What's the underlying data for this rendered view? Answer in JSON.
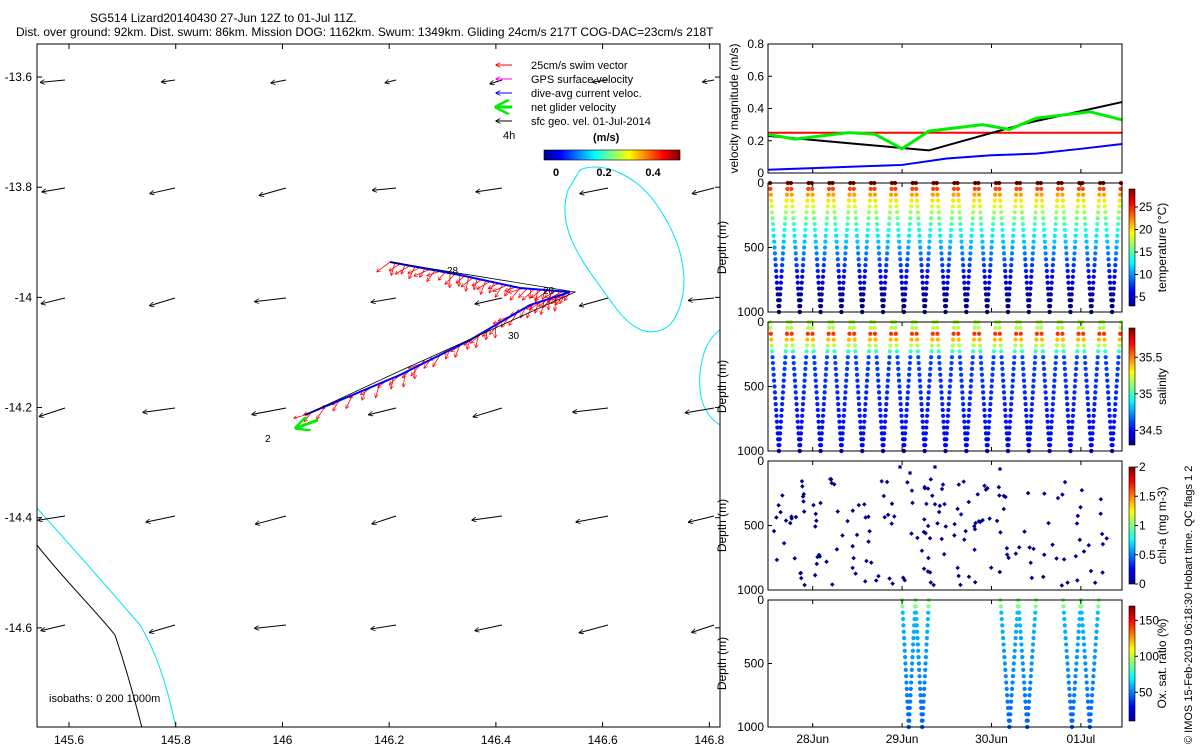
{
  "title_line1": "SG514 Lizard20140430 27-Jun 12Z to 01-Jul 11Z.",
  "title_line2": "Dist. over ground: 92km. Dist. swum: 86km. Mission DOG: 1162km. Swum: 1349km. Gliding 24cm/s 217T COG-DAC=23cm/s 218T",
  "credit": "© IMOS 15-Feb-2019 06:18:30 Hobart time. QC flags 1  2",
  "colors": {
    "swim": "#ff0000",
    "gps": "#ff00ff",
    "dac": "#0000ff",
    "net": "#00ee00",
    "sfc": "#000000",
    "isobath_200": "#00e5ee",
    "isobath_0": "#000000"
  },
  "map": {
    "legend": [
      {
        "label": "25cm/s swim vector",
        "color": "#ff0000"
      },
      {
        "label": "GPS surface velocity",
        "color": "#ff00ff"
      },
      {
        "label": "dive-avg current veloc.",
        "color": "#0000ff"
      },
      {
        "label": "net glider velocity",
        "color": "#00ee00"
      },
      {
        "label": "sfc geo. vel. 01-Jul-2014",
        "color": "#000000"
      }
    ],
    "legend_4h": "4h",
    "colorbar": {
      "title": "(m/s)",
      "ticks": [
        "0",
        "0.2",
        "0.4"
      ],
      "range": [
        0,
        0.45
      ]
    },
    "isobaths_note": "isobaths: 0   200  1000m",
    "xticks": [
      "145.6",
      "145.8",
      "146",
      "146.2",
      "146.4",
      "146.6",
      "146.8"
    ],
    "xtick_values": [
      145.6,
      145.8,
      146.0,
      146.2,
      146.4,
      146.6,
      146.8
    ],
    "yticks": [
      "-13.6",
      "-13.8",
      "-14",
      "-14.2",
      "-14.4",
      "-14.6"
    ],
    "ytick_values": [
      -13.6,
      -13.8,
      -14.0,
      -14.2,
      -14.4,
      -14.6
    ],
    "xlim": [
      145.54,
      146.82
    ],
    "ylim": [
      -14.78,
      -13.54
    ],
    "track_labels": [
      "2",
      "30",
      "28",
      "28"
    ]
  },
  "chart_data": [
    {
      "type": "line",
      "ylabel": "velocity magnitude (m/s)",
      "ylim": [
        0,
        0.8
      ],
      "yticks": [
        "0",
        "0.2",
        "0.4",
        "0.6",
        "0.8"
      ],
      "x_range_days": [
        27.5,
        31.46
      ],
      "series": [
        {
          "name": "swim",
          "color": "#ff0000",
          "x": [
            27.5,
            31.46
          ],
          "y": [
            0.25,
            0.25
          ]
        },
        {
          "name": "sfc geo",
          "color": "#000000",
          "x": [
            27.5,
            28.5,
            29.3,
            30.4,
            31.46
          ],
          "y": [
            0.23,
            0.18,
            0.14,
            0.31,
            0.44
          ]
        },
        {
          "name": "dive-avg current",
          "color": "#0000ff",
          "x": [
            27.5,
            28.0,
            28.5,
            29.0,
            29.5,
            30.0,
            30.5,
            31.0,
            31.46
          ],
          "y": [
            0.02,
            0.03,
            0.04,
            0.05,
            0.09,
            0.11,
            0.12,
            0.15,
            0.18
          ]
        },
        {
          "name": "net glider",
          "color": "#00ee00",
          "x": [
            27.5,
            27.8,
            28.1,
            28.4,
            28.7,
            29.0,
            29.3,
            29.6,
            29.9,
            30.2,
            30.5,
            30.8,
            31.1,
            31.46
          ],
          "y": [
            0.24,
            0.21,
            0.23,
            0.25,
            0.24,
            0.15,
            0.26,
            0.28,
            0.3,
            0.27,
            0.34,
            0.36,
            0.38,
            0.33
          ]
        }
      ]
    },
    {
      "type": "scatter",
      "ylabel": "Depth (m)",
      "yticks": [
        "0",
        "500",
        "1000"
      ],
      "ylim": [
        1000,
        0
      ],
      "colorbar_label": "temperature (°C)",
      "colorbar_ticks": [
        "5",
        "10",
        "15",
        "20",
        "25"
      ],
      "crange": [
        3,
        29
      ],
      "dives": 17,
      "max_depth": 1000
    },
    {
      "type": "scatter",
      "ylabel": "Depth (m)",
      "yticks": [
        "0",
        "500",
        "1000"
      ],
      "ylim": [
        1000,
        0
      ],
      "colorbar_label": "salinity",
      "colorbar_ticks": [
        "34.5",
        "35",
        "35.5"
      ],
      "crange": [
        34.3,
        35.9
      ],
      "dives": 17,
      "max_depth": 1000
    },
    {
      "type": "scatter",
      "ylabel": "Depth (m)",
      "yticks": [
        "0",
        "500",
        "1000"
      ],
      "ylim": [
        1000,
        0
      ],
      "colorbar_label": "chl-a (mg m-3)",
      "colorbar_ticks": [
        "0",
        "0.5",
        "1",
        "1.5",
        "2"
      ],
      "crange": [
        0,
        2
      ]
    },
    {
      "type": "scatter",
      "ylabel": "Depth (m)",
      "yticks": [
        "0",
        "500",
        "1000"
      ],
      "ylim": [
        1000,
        0
      ],
      "colorbar_label": "Ox. sat. ratio (%)",
      "colorbar_ticks": [
        "50",
        "100",
        "150"
      ],
      "crange": [
        10,
        170
      ],
      "dive_groups": [
        [
          29.0,
          29.3
        ],
        [
          30.1,
          30.5
        ],
        [
          30.8,
          31.2
        ]
      ]
    }
  ],
  "time_axis": {
    "ticks": [
      "28Jun",
      "29Jun",
      "30Jun",
      "01Jul"
    ],
    "tick_days": [
      28,
      29,
      30,
      31
    ]
  }
}
